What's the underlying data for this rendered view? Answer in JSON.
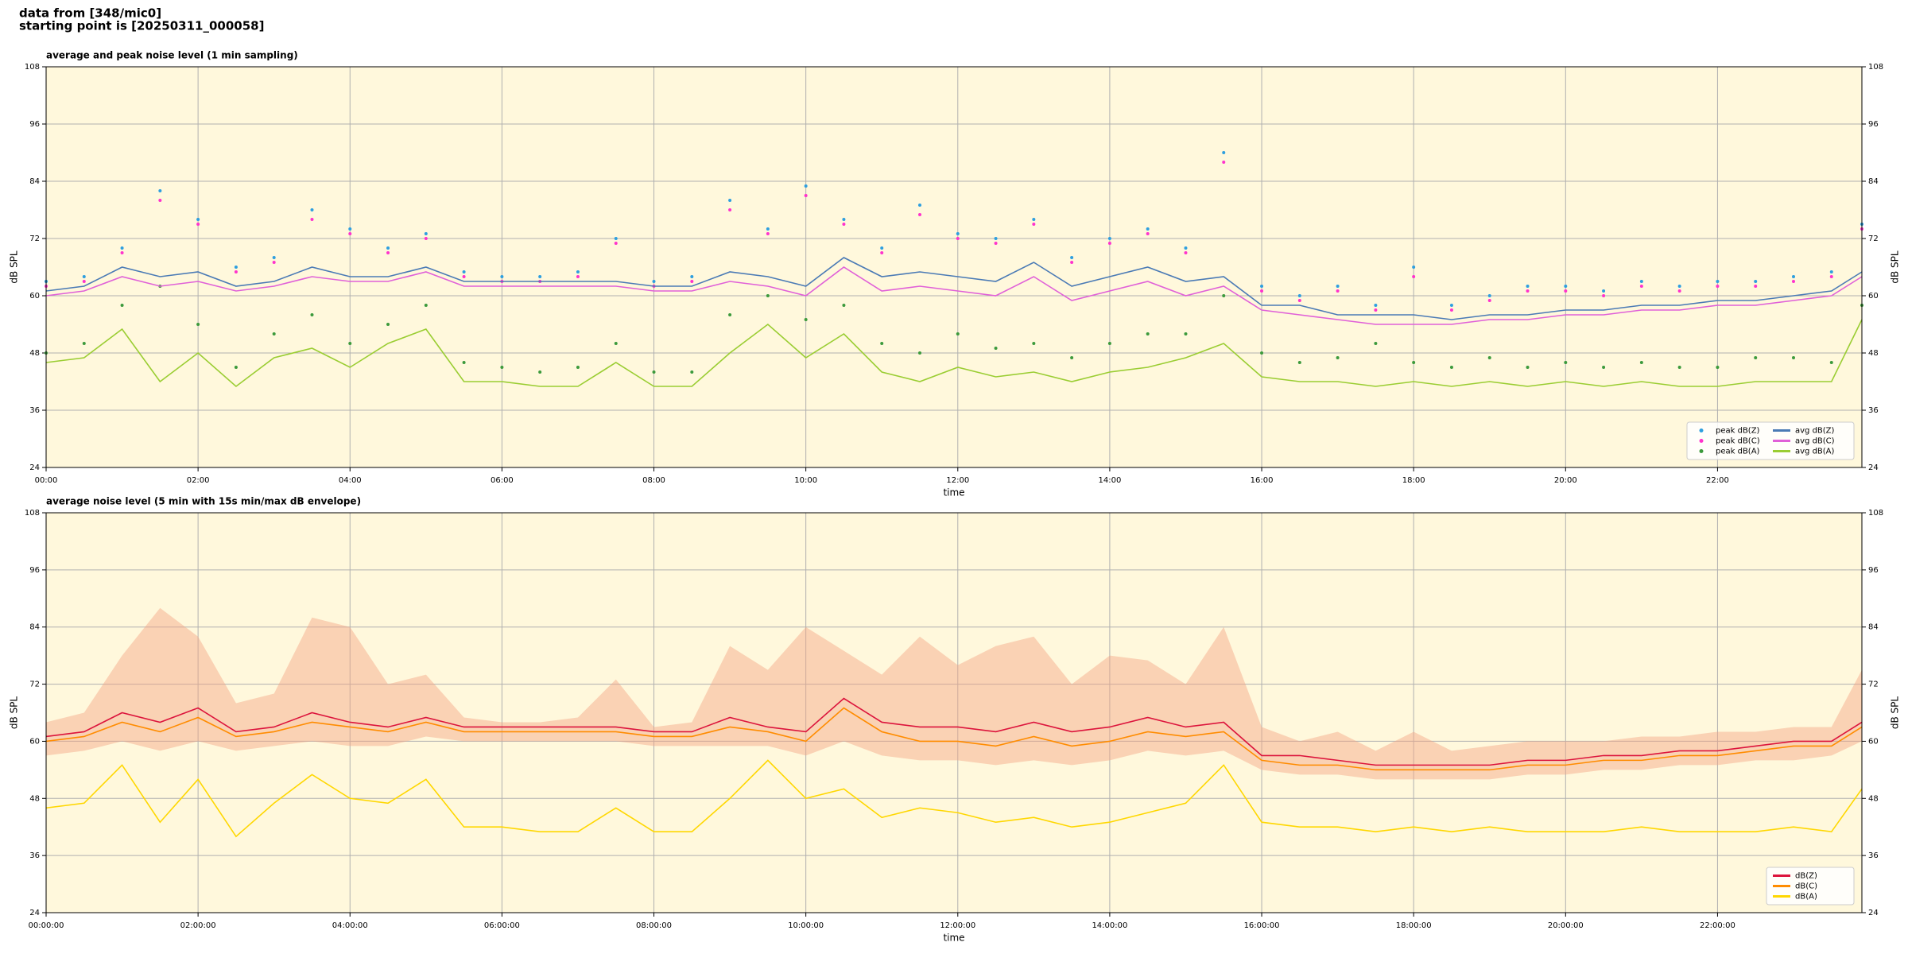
{
  "header": {
    "lines": [
      "data from [348/mic0]",
      "starting point is [20250311_000058]"
    ]
  },
  "chart_data": [
    {
      "type": "line",
      "title": "average and peak noise level (1 min sampling)",
      "x_label": "time",
      "y_label": "dB SPL",
      "x": [
        0,
        0.5,
        1,
        1.5,
        2,
        2.5,
        3,
        3.5,
        4,
        4.5,
        5,
        5.5,
        6,
        6.5,
        7,
        7.5,
        8,
        8.5,
        9,
        9.5,
        10,
        10.5,
        11,
        11.5,
        12,
        12.5,
        13,
        13.5,
        14,
        14.5,
        15,
        15.5,
        16,
        16.5,
        17,
        17.5,
        18,
        18.5,
        19,
        19.5,
        20,
        20.5,
        21,
        21.5,
        22,
        22.5,
        23,
        23.5,
        23.9
      ],
      "xlim": [
        0,
        23.9
      ],
      "xticks": [
        {
          "value": 0,
          "label": "00:00"
        },
        {
          "value": 2,
          "label": "02:00"
        },
        {
          "value": 4,
          "label": "04:00"
        },
        {
          "value": 6,
          "label": "06:00"
        },
        {
          "value": 8,
          "label": "08:00"
        },
        {
          "value": 10,
          "label": "10:00"
        },
        {
          "value": 12,
          "label": "12:00"
        },
        {
          "value": 14,
          "label": "14:00"
        },
        {
          "value": 16,
          "label": "16:00"
        },
        {
          "value": 18,
          "label": "18:00"
        },
        {
          "value": 20,
          "label": "20:00"
        },
        {
          "value": 22,
          "label": "22:00"
        }
      ],
      "ylim": [
        24,
        108
      ],
      "yticks": [
        24,
        36,
        48,
        60,
        72,
        84,
        96,
        108
      ],
      "grid": true,
      "legend": "lower right",
      "background": "#fff8dc",
      "series": [
        {
          "name": "peak dB(Z)",
          "color": "#2e9fdf",
          "mode": "markers",
          "values": [
            63,
            64,
            70,
            82,
            76,
            66,
            68,
            78,
            74,
            70,
            73,
            65,
            64,
            64,
            65,
            72,
            63,
            64,
            80,
            74,
            83,
            76,
            70,
            79,
            73,
            72,
            76,
            68,
            72,
            74,
            70,
            90,
            62,
            60,
            62,
            58,
            66,
            58,
            60,
            62,
            62,
            61,
            63,
            62,
            63,
            63,
            64,
            65,
            75
          ]
        },
        {
          "name": "peak dB(C)",
          "color": "#ff33cc",
          "mode": "markers",
          "values": [
            62,
            63,
            69,
            80,
            75,
            65,
            67,
            76,
            73,
            69,
            72,
            64,
            63,
            63,
            64,
            71,
            62,
            63,
            78,
            73,
            81,
            75,
            69,
            77,
            72,
            71,
            75,
            67,
            71,
            73,
            69,
            88,
            61,
            59,
            61,
            57,
            64,
            57,
            59,
            61,
            61,
            60,
            62,
            61,
            62,
            62,
            63,
            64,
            74
          ]
        },
        {
          "name": "peak dB(A)",
          "color": "#3c9a3c",
          "mode": "markers",
          "values": [
            48,
            50,
            58,
            62,
            54,
            45,
            52,
            56,
            50,
            54,
            58,
            46,
            45,
            44,
            45,
            50,
            44,
            44,
            56,
            60,
            55,
            58,
            50,
            48,
            52,
            49,
            50,
            47,
            50,
            52,
            52,
            60,
            48,
            46,
            47,
            50,
            46,
            45,
            47,
            45,
            46,
            45,
            46,
            45,
            45,
            47,
            47,
            46,
            58
          ]
        },
        {
          "name": "avg dB(Z)",
          "color": "#4a7ab5",
          "mode": "line",
          "values": [
            61,
            62,
            66,
            64,
            65,
            62,
            63,
            66,
            64,
            64,
            66,
            63,
            63,
            63,
            63,
            63,
            62,
            62,
            65,
            64,
            62,
            68,
            64,
            65,
            64,
            63,
            67,
            62,
            64,
            66,
            63,
            64,
            58,
            58,
            56,
            56,
            56,
            55,
            56,
            56,
            57,
            57,
            58,
            58,
            59,
            59,
            60,
            61,
            65
          ]
        },
        {
          "name": "avg dB(C)",
          "color": "#e060d8",
          "mode": "line",
          "values": [
            60,
            61,
            64,
            62,
            63,
            61,
            62,
            64,
            63,
            63,
            65,
            62,
            62,
            62,
            62,
            62,
            61,
            61,
            63,
            62,
            60,
            66,
            61,
            62,
            61,
            60,
            64,
            59,
            61,
            63,
            60,
            62,
            57,
            56,
            55,
            54,
            54,
            54,
            55,
            55,
            56,
            56,
            57,
            57,
            58,
            58,
            59,
            60,
            64
          ]
        },
        {
          "name": "avg dB(A)",
          "color": "#9acd32",
          "mode": "line",
          "values": [
            46,
            47,
            53,
            42,
            48,
            41,
            47,
            49,
            45,
            50,
            53,
            42,
            42,
            41,
            41,
            46,
            41,
            41,
            48,
            54,
            47,
            52,
            44,
            42,
            45,
            43,
            44,
            42,
            44,
            45,
            47,
            50,
            43,
            42,
            42,
            41,
            42,
            41,
            42,
            41,
            42,
            41,
            42,
            41,
            41,
            42,
            42,
            42,
            55
          ]
        }
      ]
    },
    {
      "type": "line",
      "title": "average noise level (5 min with 15s min/max dB envelope)",
      "x_label": "time",
      "y_label": "dB SPL",
      "x": [
        0,
        0.5,
        1,
        1.5,
        2,
        2.5,
        3,
        3.5,
        4,
        4.5,
        5,
        5.5,
        6,
        6.5,
        7,
        7.5,
        8,
        8.5,
        9,
        9.5,
        10,
        10.5,
        11,
        11.5,
        12,
        12.5,
        13,
        13.5,
        14,
        14.5,
        15,
        15.5,
        16,
        16.5,
        17,
        17.5,
        18,
        18.5,
        19,
        19.5,
        20,
        20.5,
        21,
        21.5,
        22,
        22.5,
        23,
        23.5,
        23.9
      ],
      "xlim": [
        0,
        23.9
      ],
      "xticks": [
        {
          "value": 0,
          "label": "00:00:00"
        },
        {
          "value": 2,
          "label": "02:00:00"
        },
        {
          "value": 4,
          "label": "04:00:00"
        },
        {
          "value": 6,
          "label": "06:00:00"
        },
        {
          "value": 8,
          "label": "08:00:00"
        },
        {
          "value": 10,
          "label": "10:00:00"
        },
        {
          "value": 12,
          "label": "12:00:00"
        },
        {
          "value": 14,
          "label": "14:00:00"
        },
        {
          "value": 16,
          "label": "16:00:00"
        },
        {
          "value": 18,
          "label": "18:00:00"
        },
        {
          "value": 20,
          "label": "20:00:00"
        },
        {
          "value": 22,
          "label": "22:00:00"
        }
      ],
      "ylim": [
        24,
        108
      ],
      "yticks": [
        24,
        36,
        48,
        60,
        72,
        84,
        96,
        108
      ],
      "grid": true,
      "legend": "lower right",
      "background": "#fff8dc",
      "envelope": {
        "color": "#f4a582",
        "low": [
          57,
          58,
          60,
          58,
          60,
          58,
          59,
          60,
          59,
          59,
          61,
          60,
          60,
          60,
          60,
          60,
          59,
          59,
          59,
          59,
          57,
          60,
          57,
          56,
          56,
          55,
          56,
          55,
          56,
          58,
          57,
          58,
          54,
          53,
          53,
          52,
          52,
          52,
          52,
          53,
          53,
          54,
          54,
          55,
          55,
          56,
          56,
          57,
          60
        ],
        "high": [
          64,
          66,
          78,
          88,
          82,
          68,
          70,
          86,
          84,
          72,
          74,
          65,
          64,
          64,
          65,
          73,
          63,
          64,
          80,
          75,
          84,
          79,
          74,
          82,
          76,
          80,
          82,
          72,
          78,
          77,
          72,
          84,
          63,
          60,
          62,
          58,
          62,
          58,
          59,
          60,
          60,
          60,
          61,
          61,
          62,
          62,
          63,
          63,
          75
        ]
      },
      "series": [
        {
          "name": "dB(Z)",
          "color": "#dc143c",
          "mode": "line",
          "values": [
            61,
            62,
            66,
            64,
            67,
            62,
            63,
            66,
            64,
            63,
            65,
            63,
            63,
            63,
            63,
            63,
            62,
            62,
            65,
            63,
            62,
            69,
            64,
            63,
            63,
            62,
            64,
            62,
            63,
            65,
            63,
            64,
            57,
            57,
            56,
            55,
            55,
            55,
            55,
            56,
            56,
            57,
            57,
            58,
            58,
            59,
            60,
            60,
            64
          ]
        },
        {
          "name": "dB(C)",
          "color": "#ff8c00",
          "mode": "line",
          "values": [
            60,
            61,
            64,
            62,
            65,
            61,
            62,
            64,
            63,
            62,
            64,
            62,
            62,
            62,
            62,
            62,
            61,
            61,
            63,
            62,
            60,
            67,
            62,
            60,
            60,
            59,
            61,
            59,
            60,
            62,
            61,
            62,
            56,
            55,
            55,
            54,
            54,
            54,
            54,
            55,
            55,
            56,
            56,
            57,
            57,
            58,
            59,
            59,
            63
          ]
        },
        {
          "name": "dB(A)",
          "color": "#ffd700",
          "mode": "line",
          "values": [
            46,
            47,
            55,
            43,
            52,
            40,
            47,
            53,
            48,
            47,
            52,
            42,
            42,
            41,
            41,
            46,
            41,
            41,
            48,
            56,
            48,
            50,
            44,
            46,
            45,
            43,
            44,
            42,
            43,
            45,
            47,
            55,
            43,
            42,
            42,
            41,
            42,
            41,
            42,
            41,
            41,
            41,
            42,
            41,
            41,
            41,
            42,
            41,
            50
          ]
        }
      ]
    }
  ]
}
